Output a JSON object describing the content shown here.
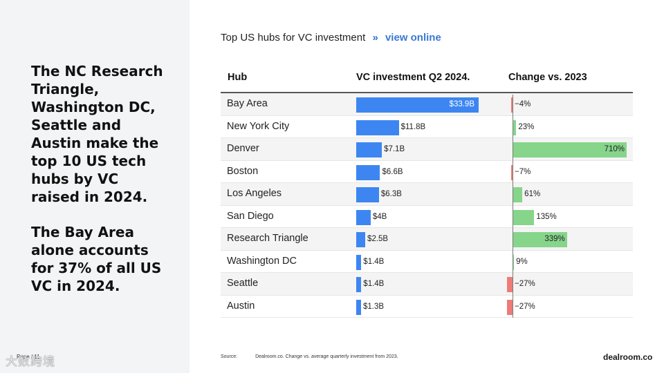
{
  "headline_1": "The NC Research Triangle, Washington DC, Seattle and Austin make the top 10 US tech hubs by VC raised in 2024.",
  "headline_2": "The Bay Area alone accounts for 37% of all US VC in 2024.",
  "page_number": "Page / 11",
  "watermark": "大数跨境",
  "source_label": "Source:",
  "source_text": "Dealroom.co. Change vs. average quarterly investment from 2023.",
  "brand": "dealroom.co",
  "colors": {
    "investment_bar": "#3d86f2",
    "positive_change": "#86d58b",
    "negative_change": "#ee7b78",
    "link": "#3a78d4"
  },
  "chart_data": {
    "type": "table",
    "title": "Top US hubs for VC investment",
    "title_separator": "»",
    "title_link": "view online",
    "columns": [
      "Hub",
      "VC investment Q2 2024.",
      "Change vs. 2023"
    ],
    "investment_unit": "$B",
    "change_unit": "%",
    "rows": [
      {
        "hub": "Bay Area",
        "investment": 33.9,
        "investment_label": "$33.9B",
        "change": -4,
        "change_label": "−4%"
      },
      {
        "hub": "New York City",
        "investment": 11.8,
        "investment_label": "$11.8B",
        "change": 23,
        "change_label": "23%"
      },
      {
        "hub": "Denver",
        "investment": 7.1,
        "investment_label": "$7.1B",
        "change": 710,
        "change_label": "710%"
      },
      {
        "hub": "Boston",
        "investment": 6.6,
        "investment_label": "$6.6B",
        "change": -7,
        "change_label": "−7%"
      },
      {
        "hub": "Los Angeles",
        "investment": 6.3,
        "investment_label": "$6.3B",
        "change": 61,
        "change_label": "61%"
      },
      {
        "hub": "San Diego",
        "investment": 4,
        "investment_label": "$4B",
        "change": 135,
        "change_label": "135%"
      },
      {
        "hub": "Research Triangle",
        "investment": 2.5,
        "investment_label": "$2.5B",
        "change": 339,
        "change_label": "339%"
      },
      {
        "hub": "Washington DC",
        "investment": 1.4,
        "investment_label": "$1.4B",
        "change": 9,
        "change_label": "9%"
      },
      {
        "hub": "Seattle",
        "investment": 1.4,
        "investment_label": "$1.4B",
        "change": -27,
        "change_label": "−27%"
      },
      {
        "hub": "Austin",
        "investment": 1.3,
        "investment_label": "$1.3B",
        "change": -27,
        "change_label": "−27%"
      }
    ]
  }
}
